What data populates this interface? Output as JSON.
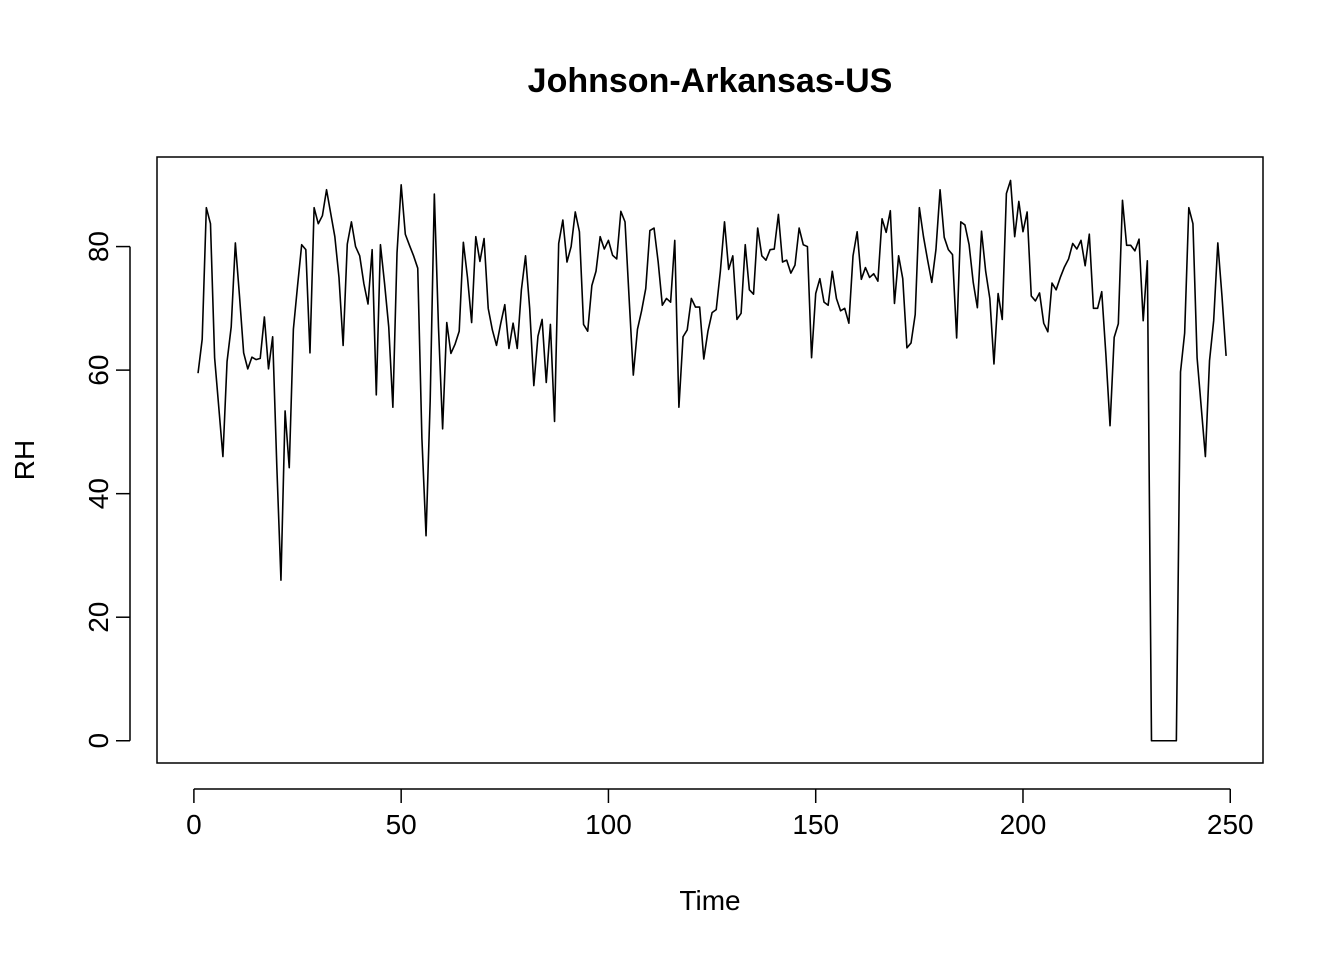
{
  "chart_data": {
    "type": "line",
    "title": "Johnson-Arkansas-US",
    "xlabel": "Time",
    "ylabel": "RH",
    "xlim": [
      -8.9,
      257.9
    ],
    "ylim": [
      -3.6,
      94.5
    ],
    "x_ticks": [
      0,
      50,
      100,
      150,
      200,
      250
    ],
    "y_ticks": [
      0,
      20,
      40,
      60,
      80
    ],
    "grid": false,
    "legend": "none",
    "line_color": "#000000",
    "x_start": 1,
    "values": [
      59.5,
      65,
      86.3,
      83.7,
      62,
      54,
      46,
      61.4,
      67,
      80.6,
      72,
      62.8,
      60.2,
      62.1,
      61.7,
      61.9,
      68.6,
      60.2,
      65.4,
      44.5,
      26,
      53.4,
      44.2,
      66.6,
      73.6,
      80.3,
      79.5,
      62.8,
      86.3,
      83.7,
      85,
      89.2,
      85.4,
      81.6,
      75,
      64,
      80.4,
      84,
      80,
      78.5,
      74,
      70.7,
      79.5,
      56,
      80.3,
      74,
      67,
      54,
      79,
      90,
      82,
      80.2,
      78.5,
      76.5,
      49,
      33.2,
      55,
      88.5,
      67,
      50.5,
      67.7,
      62.7,
      64.2,
      66.3,
      80.7,
      75,
      67.7,
      81.6,
      77.6,
      81.3,
      70,
      66.5,
      64,
      67.5,
      70.6,
      63.5,
      67.6,
      63.5,
      73,
      78.5,
      70,
      57.5,
      65.5,
      68.2,
      58,
      67.4,
      51.7,
      80.5,
      84.3,
      77.5,
      80,
      85.6,
      82.4,
      67.4,
      66.3,
      73.7,
      76,
      81.6,
      79.6,
      81,
      78.6,
      78,
      85.7,
      84,
      71.5,
      59.2,
      66.6,
      69.6,
      73.2,
      82.6,
      83,
      77.5,
      70.5,
      71.6,
      71,
      81,
      54,
      65.4,
      66.5,
      71.6,
      70.2,
      70.2,
      61.8,
      66.3,
      69.3,
      69.8,
      76,
      84,
      76.3,
      78.5,
      68.2,
      69.2,
      80.3,
      73,
      72.3,
      83,
      78.5,
      77.8,
      79.5,
      79.6,
      85.2,
      77.5,
      77.8,
      75.7,
      77,
      83,
      80.3,
      80,
      62,
      72.4,
      74.8,
      71,
      70.5,
      76,
      71.6,
      69.6,
      70,
      67.6,
      78.5,
      82.4,
      74.7,
      76.6,
      75,
      75.6,
      74.4,
      84.5,
      82.3,
      85.8,
      70.8,
      78.5,
      74.8,
      63.6,
      64.4,
      69,
      86.3,
      81.6,
      77.8,
      74.2,
      79.5,
      89.2,
      81.5,
      79.5,
      78.7,
      65.2,
      84,
      83.5,
      80.3,
      74.2,
      70.1,
      82.5,
      76,
      71.6,
      61,
      72.4,
      68.2,
      88.6,
      90.7,
      81.6,
      87.3,
      82.4,
      85.6,
      72,
      71.2,
      72.5,
      67.6,
      66.2,
      74.1,
      73,
      75,
      76.7,
      78,
      80.5,
      79.6,
      81,
      76.9,
      82,
      70,
      70,
      72.7,
      62.5,
      51,
      65.3,
      67.5,
      87.5,
      80.2,
      80.2,
      79.3,
      81.2,
      68,
      77.7,
      0,
      0,
      0,
      0,
      0,
      0,
      0,
      59.7,
      66,
      86.3,
      83.7,
      62,
      54,
      46,
      61.5,
      68,
      80.6,
      72,
      62.3
    ]
  }
}
